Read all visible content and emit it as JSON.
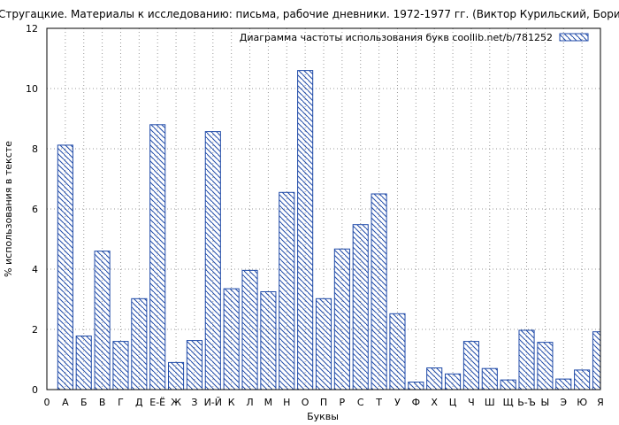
{
  "chart_data": {
    "type": "bar",
    "title": "Стругацкие. Материалы к исследованию: письма, рабочие дневники. 1972-1977 гг. (Виктор Курильский, Борис Стругацкий и",
    "xlabel": "Буквы",
    "ylabel": "% использования в тексте",
    "ylim": [
      0,
      12
    ],
    "yticks": [
      "0",
      "2",
      "4",
      "6",
      "8",
      "10",
      "12"
    ],
    "grid": true,
    "legend_position": "top-right",
    "bar_color": "#1f4aa8",
    "categories": [
      "0",
      "А",
      "Б",
      "В",
      "Г",
      "Д",
      "Е-Ё",
      "Ж",
      "З",
      "И-Й",
      "К",
      "Л",
      "М",
      "Н",
      "О",
      "П",
      "Р",
      "С",
      "Т",
      "У",
      "Ф",
      "Х",
      "Ц",
      "Ч",
      "Ш",
      "Щ",
      "Ь-Ъ",
      "Ы",
      "Э",
      "Ю",
      "Я"
    ],
    "series": [
      {
        "name": "Диаграмма частоты использования букв coollib.net/b/781252",
        "values": [
          null,
          8.12,
          1.78,
          4.6,
          1.6,
          3.02,
          8.8,
          0.9,
          1.63,
          8.57,
          3.35,
          3.96,
          3.25,
          6.55,
          10.6,
          3.02,
          4.67,
          5.48,
          6.5,
          2.52,
          0.25,
          0.72,
          0.52,
          1.6,
          0.7,
          0.32,
          1.97,
          1.57,
          0.35,
          0.65,
          1.92
        ]
      }
    ]
  }
}
